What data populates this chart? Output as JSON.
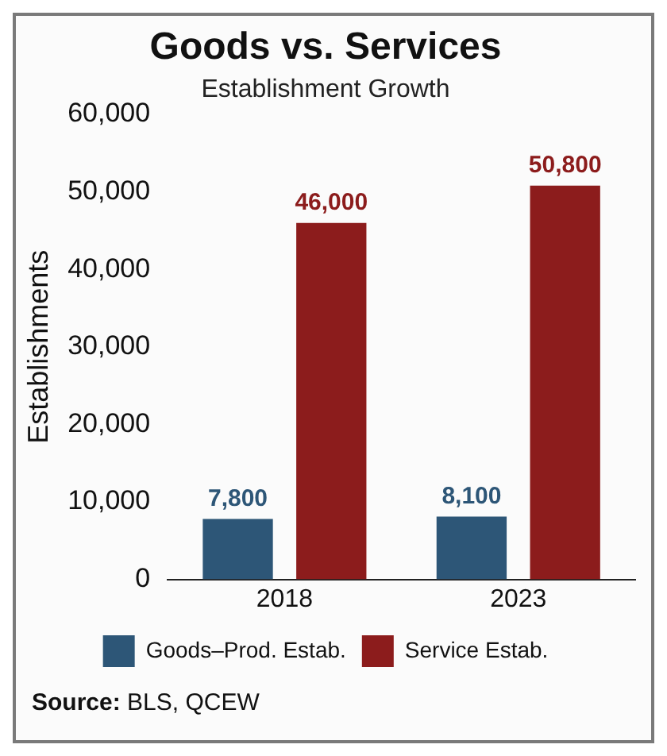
{
  "chart_data": {
    "type": "bar",
    "title": "Goods vs. Services",
    "subtitle": "Establishment Growth",
    "ylabel": "Establishments",
    "categories": [
      "2018",
      "2023"
    ],
    "series": [
      {
        "name": "Goods–Prod. Estab.",
        "color": "#2d5677",
        "values": [
          7800,
          8100
        ],
        "value_labels": [
          "7,800",
          "8,100"
        ]
      },
      {
        "name": "Service Estab.",
        "color": "#8c1c1c",
        "values": [
          46000,
          50800
        ],
        "value_labels": [
          "46,000",
          "50,800"
        ]
      }
    ],
    "ylim": [
      0,
      60000
    ],
    "yticks": [
      0,
      {
        "value": 10000,
        "label": "10,000"
      },
      {
        "value": 20000,
        "label": "20,000"
      },
      {
        "value": 30000,
        "label": "30,000"
      },
      {
        "value": 40000,
        "label": "40,000"
      },
      {
        "value": 50000,
        "label": "50,000"
      },
      {
        "value": 60000,
        "label": "60,000"
      }
    ],
    "grid": false,
    "legend": "bottom",
    "annotations": [
      "Source: BLS, QCEW"
    ]
  }
}
